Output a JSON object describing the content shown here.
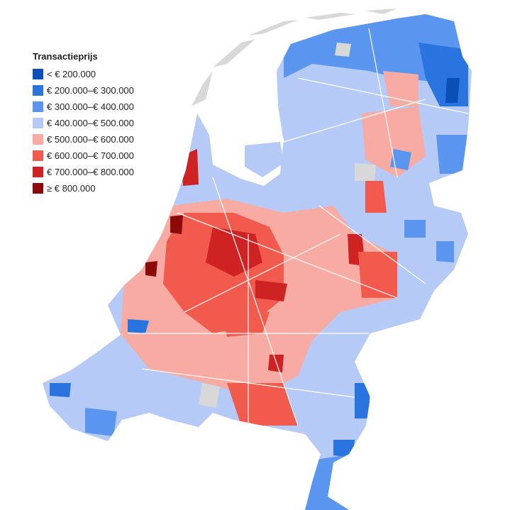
{
  "legend": {
    "title": "Transactieprijs",
    "items": [
      {
        "label": "< € 200.000",
        "color": "#0b4fb8"
      },
      {
        "label": "€ 200.000–€ 300.000",
        "color": "#2a74e0"
      },
      {
        "label": "€ 300.000–€ 400.000",
        "color": "#5a95ef"
      },
      {
        "label": "€ 400.000–€ 500.000",
        "color": "#b5caf6"
      },
      {
        "label": "€ 500.000–€ 600.000",
        "color": "#f7aba3"
      },
      {
        "label": "€ 600.000–€ 700.000",
        "color": "#f25a4e"
      },
      {
        "label": "€ 700.000–€ 800.000",
        "color": "#cf2323"
      },
      {
        "label": "≥ € 800.000",
        "color": "#8c0a0a"
      }
    ]
  }
}
